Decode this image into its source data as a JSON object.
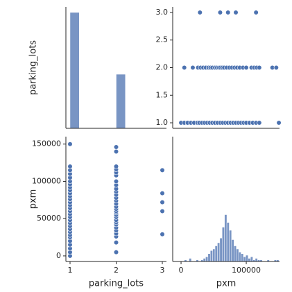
{
  "chart_data": [
    {
      "type": "histogram",
      "bins": [
        1,
        1.2,
        1.4,
        1.6,
        1.8,
        2,
        2.2,
        2.4,
        2.6,
        2.8,
        3
      ],
      "values": [
        315,
        0,
        0,
        0,
        0,
        147,
        0,
        0,
        0,
        0
      ],
      "xlim": [
        0.91,
        3.09
      ],
      "ylim": [
        0,
        330
      ],
      "color": "#4c72b0"
    },
    {
      "type": "scatter",
      "ylabel": "parking_lots",
      "x": [
        29000,
        60000,
        72000,
        84000,
        115000,
        5000,
        18000,
        26000,
        30000,
        34000,
        38000,
        42000,
        45000,
        48000,
        52000,
        55000,
        58000,
        60000,
        63000,
        66000,
        70000,
        74000,
        78000,
        82000,
        86000,
        90000,
        95000,
        100000,
        108000,
        112000,
        116000,
        120000,
        140000,
        146000,
        0,
        5000,
        10000,
        15000,
        20000,
        25000,
        28000,
        32000,
        36000,
        40000,
        44000,
        48000,
        52000,
        56000,
        60000,
        64000,
        68000,
        72000,
        76000,
        80000,
        84000,
        88000,
        92000,
        96000,
        100000,
        105000,
        110000,
        115000,
        120000,
        150000
      ],
      "y": [
        3,
        3,
        3,
        3,
        3,
        2,
        2,
        2,
        2,
        2,
        2,
        2,
        2,
        2,
        2,
        2,
        2,
        2,
        2,
        2,
        2,
        2,
        2,
        2,
        2,
        2,
        2,
        2,
        2,
        2,
        2,
        2,
        2,
        2,
        1,
        1,
        1,
        1,
        1,
        1,
        1,
        1,
        1,
        1,
        1,
        1,
        1,
        1,
        1,
        1,
        1,
        1,
        1,
        1,
        1,
        1,
        1,
        1,
        1,
        1,
        1,
        1,
        1,
        1
      ],
      "xlim": [
        -12800,
        151000
      ],
      "ylim": [
        0.9,
        3.1
      ],
      "yticks": [
        {
          "value": 1,
          "label": "1.0"
        },
        1.5,
        {
          "value": 2,
          "label": "2.0"
        },
        2.5,
        {
          "value": 3,
          "label": "3.0"
        }
      ],
      "color": "#4c72b0"
    },
    {
      "type": "scatter",
      "xlabel": "parking_lots",
      "ylabel": "pxm",
      "x": [
        3,
        3,
        3,
        3,
        3,
        2,
        2,
        2,
        2,
        2,
        2,
        2,
        2,
        2,
        2,
        2,
        2,
        2,
        2,
        2,
        2,
        2,
        2,
        2,
        2,
        2,
        2,
        2,
        2,
        2,
        2,
        2,
        2,
        2,
        1,
        1,
        1,
        1,
        1,
        1,
        1,
        1,
        1,
        1,
        1,
        1,
        1,
        1,
        1,
        1,
        1,
        1,
        1,
        1,
        1,
        1,
        1,
        1,
        1,
        1,
        1,
        1,
        1,
        1
      ],
      "y": [
        29000,
        60000,
        72000,
        84000,
        115000,
        5000,
        18000,
        26000,
        30000,
        34000,
        38000,
        42000,
        45000,
        48000,
        52000,
        55000,
        58000,
        60000,
        63000,
        66000,
        70000,
        74000,
        78000,
        82000,
        86000,
        90000,
        95000,
        100000,
        108000,
        112000,
        116000,
        120000,
        140000,
        146000,
        0,
        5000,
        10000,
        15000,
        20000,
        25000,
        28000,
        32000,
        36000,
        40000,
        44000,
        48000,
        52000,
        56000,
        60000,
        64000,
        68000,
        72000,
        76000,
        80000,
        84000,
        88000,
        92000,
        96000,
        100000,
        105000,
        110000,
        115000,
        120000,
        150000
      ],
      "xlim": [
        0.91,
        3.09
      ],
      "ylim": [
        -7500,
        160000
      ],
      "xticks": [
        1,
        2,
        3
      ],
      "yticks": [
        0,
        50000,
        100000,
        150000
      ],
      "color": "#4c72b0"
    },
    {
      "type": "histogram",
      "xlabel": "pxm",
      "bins": [
        5000,
        8625,
        12250,
        15875,
        19500,
        23125,
        26750,
        30375,
        34000,
        37625,
        41250,
        44875,
        48500,
        52125,
        55750,
        59375,
        63000,
        66625,
        70250,
        73875,
        77500,
        81125,
        84750,
        88375,
        92000,
        95625,
        99250,
        102875,
        106500,
        110125,
        113750,
        117375,
        121000,
        124625,
        128250,
        131875,
        135500,
        139125,
        142750,
        146375,
        150000
      ],
      "values": [
        1,
        0,
        2,
        0,
        0,
        1,
        0,
        1,
        2,
        3,
        5,
        7,
        8,
        10,
        12,
        15,
        22,
        30,
        25,
        20,
        14,
        10,
        8,
        6,
        5,
        3,
        4,
        2,
        3,
        1,
        2,
        1,
        1,
        0,
        0,
        1,
        0,
        0,
        1,
        1
      ],
      "xlim": [
        -12800,
        151000
      ],
      "ylim": [
        0,
        80
      ],
      "xticks": [
        0,
        100000
      ],
      "color": "#4c72b0"
    }
  ]
}
